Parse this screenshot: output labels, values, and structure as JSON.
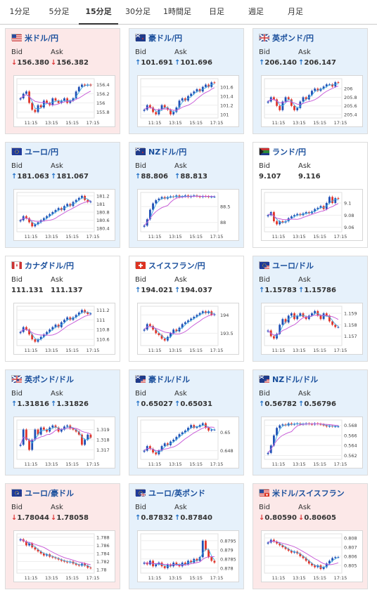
{
  "tabs": [
    {
      "label": "1分足",
      "active": false
    },
    {
      "label": "5分足",
      "active": false
    },
    {
      "label": "15分足",
      "active": true
    },
    {
      "label": "30分足",
      "active": false
    },
    {
      "label": "1時間足",
      "active": false
    },
    {
      "label": "日足",
      "active": false
    },
    {
      "label": "週足",
      "active": false
    },
    {
      "label": "月足",
      "active": false
    }
  ],
  "bid_label": "Bid",
  "ask_label": "Ask",
  "colors": {
    "up": "#e6f1fb",
    "down": "#fce8e8",
    "bull": "#1f4fb5",
    "bear": "#e0352b",
    "ma_fast": "#3fa9e0",
    "ma_slow": "#c552d6",
    "link": "#1a4f9c"
  },
  "pairs": [
    {
      "name": "米ドル/円",
      "flag": "us-flag",
      "trend": "down",
      "bid_dir": "down",
      "bid": "156.380",
      "ask_dir": "down",
      "ask": "156.382",
      "y_ticks": [
        "156.4",
        "156.2",
        "156",
        "155.8"
      ],
      "ymin": 155.7,
      "ymax": 156.5,
      "x_ticks": [
        "11:15",
        "13:15",
        "15:15",
        "17:15"
      ],
      "shape": [
        156.1,
        156.2,
        156.25,
        156.0,
        155.85,
        155.8,
        155.95,
        155.9,
        156.05,
        156.0,
        155.95,
        156.1,
        156.05,
        156.0,
        156.05,
        156.1,
        156.0,
        156.05,
        156.1,
        156.25,
        156.35,
        156.4,
        156.38,
        156.4,
        156.38
      ]
    },
    {
      "name": "豪ドル/円",
      "flag": "au-flag",
      "trend": "up",
      "bid_dir": "up",
      "bid": "101.691",
      "ask_dir": "up",
      "ask": "101.696",
      "y_ticks": [
        "101.6",
        "101.4",
        "101.2",
        "101"
      ],
      "ymin": 100.95,
      "ymax": 101.75,
      "x_ticks": [
        "11:15",
        "13:15",
        "15:15",
        "17:15"
      ],
      "shape": [
        101.1,
        101.2,
        101.15,
        101.05,
        101.0,
        101.1,
        101.2,
        101.15,
        101.1,
        101.0,
        101.05,
        101.15,
        101.3,
        101.35,
        101.3,
        101.4,
        101.45,
        101.5,
        101.55,
        101.5,
        101.6,
        101.65,
        101.6,
        101.7,
        101.69
      ]
    },
    {
      "name": "英ポンド/円",
      "flag": "gb-flag",
      "trend": "up",
      "bid_dir": "up",
      "bid": "206.140",
      "ask_dir": "up",
      "ask": "206.147",
      "y_ticks": [
        "206",
        "205.8",
        "205.6",
        "205.4"
      ],
      "ymin": 205.35,
      "ymax": 206.2,
      "x_ticks": [
        "11:15",
        "13:15",
        "15:15",
        "17:15"
      ],
      "shape": [
        205.7,
        205.8,
        205.75,
        205.6,
        205.5,
        205.7,
        205.8,
        205.75,
        205.6,
        205.5,
        205.55,
        205.7,
        205.8,
        205.75,
        205.85,
        205.95,
        206.0,
        205.95,
        206.0,
        206.05,
        206.1,
        206.1,
        206.05,
        206.15,
        206.14
      ]
    },
    {
      "name": "ユーロ/円",
      "flag": "eu-flag",
      "trend": "up",
      "bid_dir": "up",
      "bid": "181.063",
      "ask_dir": "up",
      "ask": "181.067",
      "y_ticks": [
        "181.2",
        "181",
        "180.8",
        "180.6",
        "180.4"
      ],
      "ymin": 180.35,
      "ymax": 181.25,
      "x_ticks": [
        "11:15",
        "13:15",
        "15:15",
        "17:15"
      ],
      "shape": [
        180.6,
        180.7,
        180.65,
        180.55,
        180.45,
        180.5,
        180.55,
        180.6,
        180.65,
        180.7,
        180.75,
        180.8,
        180.85,
        180.9,
        180.85,
        180.95,
        181.0,
        180.95,
        181.05,
        181.1,
        181.15,
        181.2,
        181.1,
        181.05,
        181.06
      ]
    },
    {
      "name": "NZドル/円",
      "flag": "nz-flag",
      "trend": "up",
      "bid_dir": "up",
      "bid": "88.806",
      "ask_dir": "up",
      "ask": "88.813",
      "y_ticks": [
        "88.5",
        "88"
      ],
      "ymin": 87.75,
      "ymax": 88.9,
      "x_ticks": [
        "11:15",
        "13:15",
        "15:15",
        "17:15"
      ],
      "shape": [
        87.9,
        88.1,
        88.4,
        88.6,
        88.7,
        88.75,
        88.8,
        88.75,
        88.8,
        88.82,
        88.8,
        88.85,
        88.8,
        88.82,
        88.85,
        88.8,
        88.83,
        88.85,
        88.82,
        88.8,
        88.83,
        88.82,
        88.8,
        88.81,
        88.81
      ]
    },
    {
      "name": "ランド/円",
      "flag": "za-flag",
      "trend": "flat",
      "bid_dir": "none",
      "bid": "9.107",
      "ask_dir": "none",
      "ask": "9.116",
      "y_ticks": [
        "9.1",
        "9.08",
        "9.06"
      ],
      "ymin": 9.055,
      "ymax": 9.115,
      "x_ticks": [
        "11:15",
        "13:15",
        "15:15",
        "17:15"
      ],
      "shape": [
        9.08,
        9.085,
        9.07,
        9.065,
        9.07,
        9.068,
        9.07,
        9.075,
        9.078,
        9.08,
        9.082,
        9.08,
        9.083,
        9.085,
        9.083,
        9.086,
        9.09,
        9.092,
        9.095,
        9.09,
        9.1,
        9.11,
        9.1,
        9.108,
        9.107
      ]
    },
    {
      "name": "カナダドル/円",
      "flag": "ca-flag",
      "trend": "flat",
      "bid_dir": "none",
      "bid": "111.131",
      "ask_dir": "none",
      "ask": "111.137",
      "y_ticks": [
        "111.2",
        "111",
        "110.8",
        "110.6"
      ],
      "ymin": 110.5,
      "ymax": 111.25,
      "x_ticks": [
        "11:15",
        "13:15",
        "15:15",
        "17:15"
      ],
      "shape": [
        110.75,
        110.85,
        110.8,
        110.7,
        110.6,
        110.55,
        110.6,
        110.65,
        110.7,
        110.75,
        110.8,
        110.85,
        110.9,
        110.85,
        110.95,
        111.0,
        111.05,
        111.0,
        111.05,
        111.1,
        111.15,
        111.2,
        111.15,
        111.12,
        111.13
      ]
    },
    {
      "name": "スイスフラン/円",
      "flag": "ch-flag",
      "trend": "flat",
      "bid_dir": "up",
      "bid": "194.021",
      "ask_dir": "up",
      "ask": "194.037",
      "y_ticks": [
        "194",
        "193.5"
      ],
      "ymin": 193.2,
      "ymax": 194.2,
      "x_ticks": [
        "11:15",
        "13:15",
        "15:15",
        "17:15"
      ],
      "shape": [
        193.6,
        193.75,
        193.7,
        193.6,
        193.5,
        193.45,
        193.35,
        193.3,
        193.4,
        193.5,
        193.6,
        193.55,
        193.65,
        193.75,
        193.8,
        193.85,
        193.9,
        193.95,
        194.0,
        194.05,
        194.1,
        194.05,
        194.1,
        194.0,
        194.02
      ]
    },
    {
      "name": "ユーロ/ドル",
      "flag": "eu-us-flag",
      "trend": "up",
      "bid_dir": "up",
      "bid": "1.15783",
      "ask_dir": "up",
      "ask": "1.15786",
      "y_ticks": [
        "1.159",
        "1.158",
        "1.157"
      ],
      "ymin": 1.1563,
      "ymax": 1.1595,
      "x_ticks": [
        "11:15",
        "13:15",
        "15:15",
        "17:15"
      ],
      "shape": [
        1.1575,
        1.157,
        1.1568,
        1.1572,
        1.158,
        1.1585,
        1.1582,
        1.1588,
        1.159,
        1.1585,
        1.1588,
        1.159,
        1.1587,
        1.1585,
        1.1588,
        1.159,
        1.1592,
        1.1588,
        1.1585,
        1.159,
        1.1588,
        1.1583,
        1.158,
        1.1578,
        1.1578
      ]
    },
    {
      "name": "英ポンド/ドル",
      "flag": "gb-us-flag",
      "trend": "up",
      "bid_dir": "up",
      "bid": "1.31816",
      "ask_dir": "up",
      "ask": "1.31826",
      "y_ticks": [
        "1.319",
        "1.318",
        "1.317"
      ],
      "ymin": 1.3162,
      "ymax": 1.3198,
      "x_ticks": [
        "11:15",
        "13:15",
        "15:15",
        "17:15"
      ],
      "shape": [
        1.3175,
        1.319,
        1.318,
        1.317,
        1.318,
        1.319,
        1.3185,
        1.3192,
        1.319,
        1.3188,
        1.3192,
        1.3194,
        1.3192,
        1.3188,
        1.319,
        1.3193,
        1.3194,
        1.3191,
        1.319,
        1.3188,
        1.3185,
        1.3175,
        1.318,
        1.3185,
        1.3182
      ]
    },
    {
      "name": "豪ドル/ドル",
      "flag": "au-us-flag",
      "trend": "up",
      "bid_dir": "up",
      "bid": "0.65027",
      "ask_dir": "up",
      "ask": "0.65031",
      "y_ticks": [
        "0.65",
        "0.648"
      ],
      "ymin": 0.6472,
      "ymax": 0.6512,
      "x_ticks": [
        "11:15",
        "13:15",
        "15:15",
        "17:15"
      ],
      "shape": [
        0.648,
        0.6485,
        0.6482,
        0.6478,
        0.6476,
        0.648,
        0.6485,
        0.6488,
        0.6486,
        0.649,
        0.6492,
        0.6495,
        0.6498,
        0.65,
        0.6502,
        0.6505,
        0.6508,
        0.6505,
        0.6506,
        0.6508,
        0.651,
        0.6505,
        0.6502,
        0.6503,
        0.6503
      ]
    },
    {
      "name": "NZドル/ドル",
      "flag": "nz-us-flag",
      "trend": "up",
      "bid_dir": "up",
      "bid": "0.56782",
      "ask_dir": "up",
      "ask": "0.56796",
      "y_ticks": [
        "0.568",
        "0.566",
        "0.564",
        "0.562"
      ],
      "ymin": 0.5615,
      "ymax": 0.5688,
      "x_ticks": [
        "11:15",
        "13:15",
        "15:15",
        "17:15"
      ],
      "shape": [
        0.5625,
        0.564,
        0.566,
        0.5675,
        0.568,
        0.5682,
        0.568,
        0.5684,
        0.5682,
        0.5683,
        0.5684,
        0.5682,
        0.5683,
        0.5684,
        0.5683,
        0.5682,
        0.5684,
        0.5683,
        0.5682,
        0.568,
        0.5678,
        0.5679,
        0.5678,
        0.5678,
        0.5678
      ]
    },
    {
      "name": "ユーロ/豪ドル",
      "flag": "eu-au-flag",
      "trend": "down",
      "bid_dir": "down",
      "bid": "1.78044",
      "ask_dir": "down",
      "ask": "1.78058",
      "y_ticks": [
        "1.788",
        "1.786",
        "1.784",
        "1.782",
        "1.78"
      ],
      "ymin": 1.7795,
      "ymax": 1.7885,
      "x_ticks": [
        "11:15",
        "13:15",
        "15:15",
        "17:15"
      ],
      "shape": [
        1.7875,
        1.787,
        1.786,
        1.7865,
        1.7855,
        1.785,
        1.7845,
        1.784,
        1.7835,
        1.7838,
        1.7832,
        1.783,
        1.7828,
        1.7825,
        1.7822,
        1.782,
        1.7818,
        1.782,
        1.7815,
        1.7812,
        1.781,
        1.7815,
        1.781,
        1.7805,
        1.7804
      ]
    },
    {
      "name": "ユーロ/英ポンド",
      "flag": "eu-gb-flag",
      "trend": "up",
      "bid_dir": "up",
      "bid": "0.87832",
      "ask_dir": "up",
      "ask": "0.87840",
      "y_ticks": [
        "0.8795",
        "0.879",
        "0.8785",
        "0.878"
      ],
      "ymin": 0.8778,
      "ymax": 0.8798,
      "x_ticks": [
        "11:15",
        "13:15",
        "15:15",
        "17:15"
      ],
      "shape": [
        0.8783,
        0.8782,
        0.8784,
        0.8781,
        0.8782,
        0.8783,
        0.8781,
        0.878,
        0.8782,
        0.8781,
        0.8783,
        0.8782,
        0.8781,
        0.8783,
        0.8782,
        0.8784,
        0.8783,
        0.8785,
        0.8784,
        0.8786,
        0.8795,
        0.879,
        0.8786,
        0.8784,
        0.8783
      ]
    },
    {
      "name": "米ドル/スイスフラン",
      "flag": "us-ch-flag",
      "trend": "down",
      "bid_dir": "down",
      "bid": "0.80590",
      "ask_dir": "down",
      "ask": "0.80605",
      "y_ticks": [
        "0.808",
        "0.807",
        "0.806",
        "0.805"
      ],
      "ymin": 0.8043,
      "ymax": 0.8083,
      "x_ticks": [
        "11:15",
        "13:15",
        "15:15",
        "17:15"
      ],
      "shape": [
        0.8075,
        0.8078,
        0.8076,
        0.8074,
        0.8072,
        0.807,
        0.8068,
        0.8066,
        0.8064,
        0.8065,
        0.8063,
        0.806,
        0.8058,
        0.8055,
        0.8052,
        0.805,
        0.8048,
        0.805,
        0.8046,
        0.8048,
        0.8052,
        0.8055,
        0.8058,
        0.8059,
        0.8059
      ]
    }
  ]
}
